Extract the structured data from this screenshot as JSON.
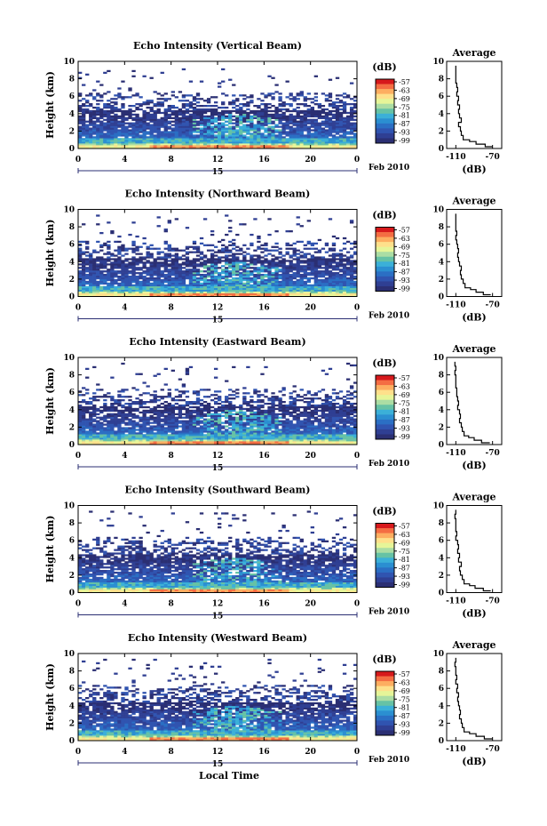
{
  "figure": {
    "xlabel": "Local Time",
    "colorbar_unit": "(dB)",
    "colorbar_ticks": [
      "-57",
      "-63",
      "-69",
      "-75",
      "-81",
      "-87",
      "-93",
      "-99"
    ],
    "colorbar_colors": [
      "#d7191c",
      "#f46d43",
      "#fdae61",
      "#fee08b",
      "#e6f598",
      "#abdda4",
      "#66c2a5",
      "#3bb0d8",
      "#2b8fd1",
      "#2b6fc4",
      "#3054b0",
      "#2f3f93",
      "#2b2f73"
    ],
    "date_day": "15",
    "date_label": "Feb 2010",
    "avg_title": "Average",
    "avg_xlabel": "(dB)"
  },
  "chart_data": [
    {
      "type": "heatmap",
      "title": "Echo Intensity (Vertical Beam)",
      "ylabel": "Height (km)",
      "xlim": [
        0,
        24
      ],
      "ylim": [
        0,
        10
      ],
      "xticks": [
        "0",
        "4",
        "8",
        "12",
        "16",
        "20",
        "0"
      ],
      "yticks": [
        "0",
        "2",
        "4",
        "6",
        "8",
        "10"
      ],
      "average_profile": {
        "title": "Average",
        "xlabel": "(dB)",
        "xticks": [
          "-110",
          "-70"
        ],
        "yticks": [
          "0",
          "2",
          "4",
          "6",
          "8",
          "10"
        ],
        "heights_km": [
          0.2,
          0.5,
          0.8,
          1,
          1.5,
          2,
          2.5,
          3,
          3.5,
          4,
          4.5,
          5,
          5.5,
          6,
          6.5,
          7,
          7.5,
          8,
          8.5,
          9,
          9.5
        ],
        "values_db": [
          -70,
          -78,
          -88,
          -95,
          -102,
          -104,
          -105,
          -107,
          -104,
          -106,
          -107,
          -106,
          -108,
          -107,
          -109,
          -108,
          -109,
          -110,
          -110,
          -110,
          -110
        ]
      }
    },
    {
      "type": "heatmap",
      "title": "Echo Intensity (Northward Beam)",
      "ylabel": "Height (km)",
      "xlim": [
        0,
        24
      ],
      "ylim": [
        0,
        10
      ],
      "xticks": [
        "0",
        "4",
        "8",
        "12",
        "16",
        "20",
        "0"
      ],
      "yticks": [
        "0",
        "2",
        "4",
        "6",
        "8",
        "10"
      ],
      "average_profile": {
        "title": "Average",
        "xlabel": "(dB)",
        "xticks": [
          "-110",
          "-70"
        ],
        "yticks": [
          "0",
          "2",
          "4",
          "6",
          "8",
          "10"
        ],
        "heights_km": [
          0.2,
          0.5,
          0.8,
          1,
          1.5,
          2,
          2.5,
          3,
          3.5,
          4,
          4.5,
          5,
          5.5,
          6,
          6.5,
          7,
          7.5,
          8,
          8.5,
          9,
          9.5
        ],
        "values_db": [
          -72,
          -80,
          -88,
          -94,
          -100,
          -102,
          -104,
          -105,
          -104,
          -106,
          -107,
          -108,
          -107,
          -108,
          -109,
          -110,
          -109,
          -110,
          -110,
          -110,
          -110
        ]
      }
    },
    {
      "type": "heatmap",
      "title": "Echo Intensity (Eastward Beam)",
      "ylabel": "Height (km)",
      "xlim": [
        0,
        24
      ],
      "ylim": [
        0,
        10
      ],
      "xticks": [
        "0",
        "4",
        "8",
        "12",
        "16",
        "20",
        "0"
      ],
      "yticks": [
        "0",
        "2",
        "4",
        "6",
        "8",
        "10"
      ],
      "average_profile": {
        "title": "Average",
        "xlabel": "(dB)",
        "xticks": [
          "-110",
          "-70"
        ],
        "yticks": [
          "0",
          "2",
          "4",
          "6",
          "8",
          "10"
        ],
        "heights_km": [
          0.2,
          0.5,
          0.8,
          1,
          1.5,
          2,
          2.5,
          3,
          3.5,
          4,
          4.5,
          5,
          5.5,
          6,
          6.5,
          7,
          7.5,
          8,
          8.5,
          9,
          9.5
        ],
        "values_db": [
          -73,
          -82,
          -90,
          -96,
          -101,
          -103,
          -104,
          -106,
          -105,
          -106,
          -108,
          -107,
          -108,
          -109,
          -109,
          -110,
          -110,
          -110,
          -111,
          -110,
          -111
        ]
      }
    },
    {
      "type": "heatmap",
      "title": "Echo Intensity (Southward Beam)",
      "ylabel": "Height (km)",
      "xlim": [
        0,
        24
      ],
      "ylim": [
        0,
        10
      ],
      "xticks": [
        "0",
        "4",
        "8",
        "12",
        "16",
        "20",
        "0"
      ],
      "yticks": [
        "0",
        "2",
        "4",
        "6",
        "8",
        "10"
      ],
      "average_profile": {
        "title": "Average",
        "xlabel": "(dB)",
        "xticks": [
          "-110",
          "-70"
        ],
        "yticks": [
          "0",
          "2",
          "4",
          "6",
          "8",
          "10"
        ],
        "heights_km": [
          0.2,
          0.5,
          0.8,
          1,
          1.5,
          2,
          2.5,
          3,
          3.5,
          4,
          4.5,
          5,
          5.5,
          6,
          6.5,
          7,
          7.5,
          8,
          8.5,
          9,
          9.5
        ],
        "values_db": [
          -72,
          -80,
          -89,
          -95,
          -101,
          -103,
          -105,
          -106,
          -104,
          -107,
          -106,
          -108,
          -107,
          -108,
          -110,
          -109,
          -110,
          -110,
          -110,
          -111,
          -110
        ]
      }
    },
    {
      "type": "heatmap",
      "title": "Echo Intensity (Westward Beam)",
      "ylabel": "Height (km)",
      "xlim": [
        0,
        24
      ],
      "ylim": [
        0,
        10
      ],
      "xticks": [
        "0",
        "4",
        "8",
        "12",
        "16",
        "20",
        "0"
      ],
      "yticks": [
        "0",
        "2",
        "4",
        "6",
        "8",
        "10"
      ],
      "average_profile": {
        "title": "Average",
        "xlabel": "(dB)",
        "xticks": [
          "-110",
          "-70"
        ],
        "yticks": [
          "0",
          "2",
          "4",
          "6",
          "8",
          "10"
        ],
        "heights_km": [
          0.2,
          0.5,
          0.8,
          1,
          1.5,
          2,
          2.5,
          3,
          3.5,
          4,
          4.5,
          5,
          5.5,
          6,
          6.5,
          7,
          7.5,
          8,
          8.5,
          9,
          9.5
        ],
        "values_db": [
          -70,
          -79,
          -88,
          -95,
          -101,
          -103,
          -104,
          -106,
          -105,
          -106,
          -107,
          -108,
          -107,
          -109,
          -108,
          -110,
          -109,
          -110,
          -110,
          -111,
          -110
        ]
      }
    }
  ]
}
